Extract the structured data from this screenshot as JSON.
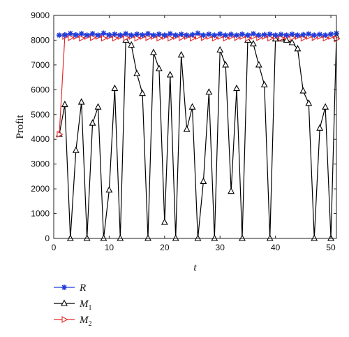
{
  "chart_data": {
    "type": "line",
    "xlabel": "t",
    "ylabel": "Profit",
    "xlim": [
      0,
      51
    ],
    "ylim": [
      0,
      9000
    ],
    "x_ticks": [
      0,
      10,
      20,
      30,
      40,
      50
    ],
    "y_ticks": [
      0,
      1000,
      2000,
      3000,
      4000,
      5000,
      6000,
      7000,
      8000,
      9000
    ],
    "grid": false,
    "legend_position": "bottom-left-outside",
    "series": [
      {
        "name": "R",
        "legend_main": "R",
        "legend_sub": "",
        "color": "#1f3ddc",
        "marker": "asterisk",
        "x": [
          1,
          2,
          3,
          4,
          5,
          6,
          7,
          8,
          9,
          10,
          11,
          12,
          13,
          14,
          15,
          16,
          17,
          18,
          19,
          20,
          21,
          22,
          23,
          24,
          25,
          26,
          27,
          28,
          29,
          30,
          31,
          32,
          33,
          34,
          35,
          36,
          37,
          38,
          39,
          40,
          41,
          42,
          43,
          44,
          45,
          46,
          47,
          48,
          49,
          50,
          51
        ],
        "values": [
          8200,
          8210,
          8270,
          8210,
          8260,
          8200,
          8260,
          8200,
          8280,
          8210,
          8240,
          8200,
          8260,
          8200,
          8240,
          8210,
          8260,
          8200,
          8240,
          8200,
          8260,
          8200,
          8240,
          8200,
          8220,
          8280,
          8200,
          8240,
          8200,
          8250,
          8200,
          8230,
          8200,
          8240,
          8200,
          8260,
          8200,
          8220,
          8240,
          8200,
          8230,
          8200,
          8240,
          8200,
          8220,
          8250,
          8200,
          8230,
          8200,
          8240,
          8280
        ]
      },
      {
        "name": "M1",
        "legend_main": "M",
        "legend_sub": "1",
        "color": "#000000",
        "marker": "triangle-up",
        "x": [
          1,
          2,
          3,
          4,
          5,
          6,
          7,
          8,
          9,
          10,
          11,
          12,
          13,
          14,
          15,
          16,
          17,
          18,
          19,
          20,
          21,
          22,
          23,
          24,
          25,
          26,
          27,
          28,
          29,
          30,
          31,
          32,
          33,
          34,
          35,
          36,
          37,
          38,
          39,
          40,
          41,
          42,
          43,
          44,
          45,
          46,
          47,
          48,
          49,
          50,
          51
        ],
        "values": [
          4200,
          5400,
          0,
          3550,
          5500,
          0,
          4650,
          5300,
          0,
          1950,
          6050,
          0,
          8000,
          7800,
          6650,
          5850,
          0,
          7500,
          6850,
          650,
          6600,
          0,
          7400,
          4400,
          5300,
          0,
          2300,
          5900,
          0,
          7600,
          7000,
          1900,
          6050,
          0,
          8000,
          7850,
          7000,
          6200,
          0,
          8050,
          8050,
          8000,
          7900,
          7650,
          5950,
          5450,
          0,
          4450,
          5300,
          0,
          8150
        ]
      },
      {
        "name": "M2",
        "legend_main": "M",
        "legend_sub": "2",
        "color": "#e32b2b",
        "marker": "triangle-right",
        "x": [
          1,
          2,
          3,
          4,
          5,
          6,
          7,
          8,
          9,
          10,
          11,
          12,
          13,
          14,
          15,
          16,
          17,
          18,
          19,
          20,
          21,
          22,
          23,
          24,
          25,
          26,
          27,
          28,
          29,
          30,
          31,
          32,
          33,
          34,
          35,
          36,
          37,
          38,
          39,
          40,
          41,
          42,
          43,
          44,
          45,
          46,
          47,
          48,
          49,
          50,
          51
        ],
        "values": [
          4200,
          8150,
          8100,
          8150,
          8080,
          8150,
          8100,
          8150,
          8080,
          8150,
          8080,
          8150,
          8100,
          8150,
          8080,
          8150,
          8100,
          8150,
          8080,
          8150,
          8080,
          8150,
          8100,
          8150,
          8080,
          8150,
          8100,
          8150,
          8080,
          8150,
          8080,
          8150,
          8100,
          8150,
          8080,
          8150,
          8100,
          8150,
          8080,
          8150,
          8080,
          8150,
          8100,
          8150,
          8080,
          8150,
          8100,
          8150,
          8080,
          8150,
          8050
        ]
      }
    ]
  }
}
